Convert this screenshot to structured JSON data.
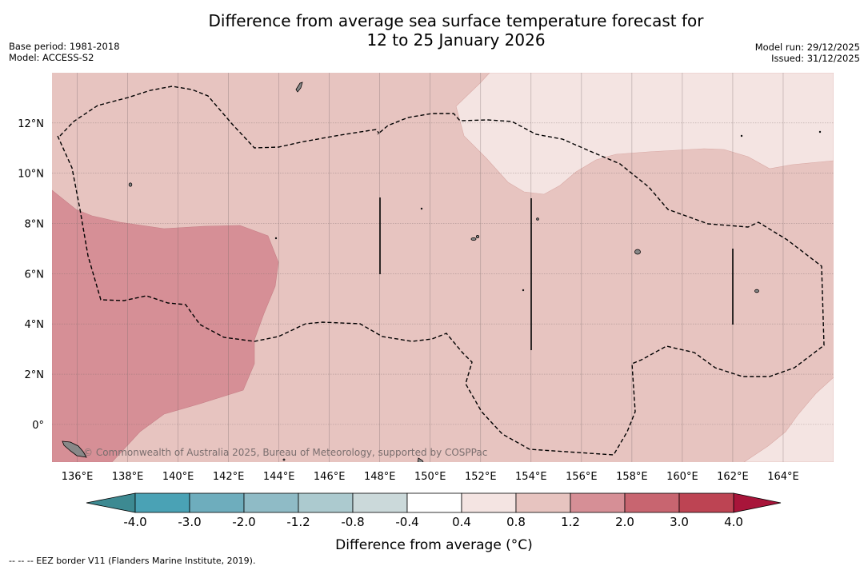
{
  "title": {
    "line1": "Difference from average sea surface temperature forecast for",
    "line2": "12 to 25 January 2026"
  },
  "meta_left": {
    "base_period": "Base period: 1981-2018",
    "model": "Model: ACCESS-S2"
  },
  "meta_right": {
    "model_run": "Model run: 29/12/2025",
    "issued": "Issued: 31/12/2025"
  },
  "map": {
    "lon_range": [
      135,
      166
    ],
    "lat_range": [
      -1.5,
      14
    ],
    "lon_ticks": [
      "136°E",
      "138°E",
      "140°E",
      "142°E",
      "144°E",
      "146°E",
      "148°E",
      "150°E",
      "152°E",
      "154°E",
      "156°E",
      "158°E",
      "160°E",
      "162°E",
      "164°E"
    ],
    "lat_ticks": [
      "0°",
      "2°N",
      "4°N",
      "6°N",
      "8°N",
      "10°N",
      "12°N"
    ],
    "attribution": "© Commonwealth of Australia 2025, Bureau of Meteorology, supported by COSPPac",
    "colors": {
      "band_1_2": "#e7c4c0",
      "band_0_4": "#f4e4e2",
      "band_2_3": "#d68f96"
    }
  },
  "colorbar": {
    "tick_labels": [
      "-4.0",
      "-3.0",
      "-2.0",
      "-1.2",
      "-0.8",
      "-0.4",
      "0.4",
      "0.8",
      "1.2",
      "2.0",
      "3.0",
      "4.0"
    ],
    "colors": [
      "#4aa2b5",
      "#6eadbd",
      "#8fbbc6",
      "#accacf",
      "#cbd9da",
      "#ffffff",
      "#f4e4e2",
      "#e7c4c0",
      "#d68f96",
      "#c86570",
      "#bd4453"
    ],
    "low_extend_color": "#3d8a92",
    "high_extend_color": "#a8153a",
    "label": "Difference from average (°C)"
  },
  "footnote": "--  --  -- EEZ border V11 (Flanders Marine Institute, 2019)."
}
